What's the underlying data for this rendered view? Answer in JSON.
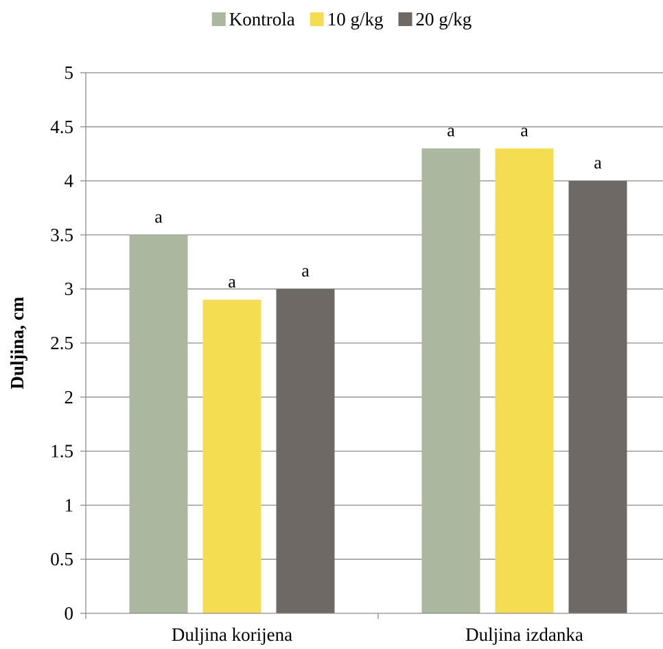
{
  "chart_data": {
    "type": "bar",
    "categories": [
      "Duljina korijena",
      "Duljina izdanka"
    ],
    "series": [
      {
        "name": "Kontrola",
        "values": [
          3.5,
          4.3
        ],
        "color": "#abb89f",
        "labels": [
          "a",
          "a"
        ]
      },
      {
        "name": "10 g/kg",
        "values": [
          2.9,
          4.3
        ],
        "color": "#f5dd52",
        "labels": [
          "a",
          "a"
        ]
      },
      {
        "name": "20 g/kg",
        "values": [
          3.0,
          4.0
        ],
        "color": "#6e6964",
        "labels": [
          "a",
          "a"
        ]
      }
    ],
    "xlabel": "",
    "ylabel": "Duljina, cm",
    "ylim": [
      0,
      5
    ],
    "yticks": [
      "0",
      "0.5",
      "1",
      "1.5",
      "2",
      "2.5",
      "3",
      "3.5",
      "4",
      "4.5",
      "5"
    ],
    "grid": true,
    "legend_position": "top"
  }
}
